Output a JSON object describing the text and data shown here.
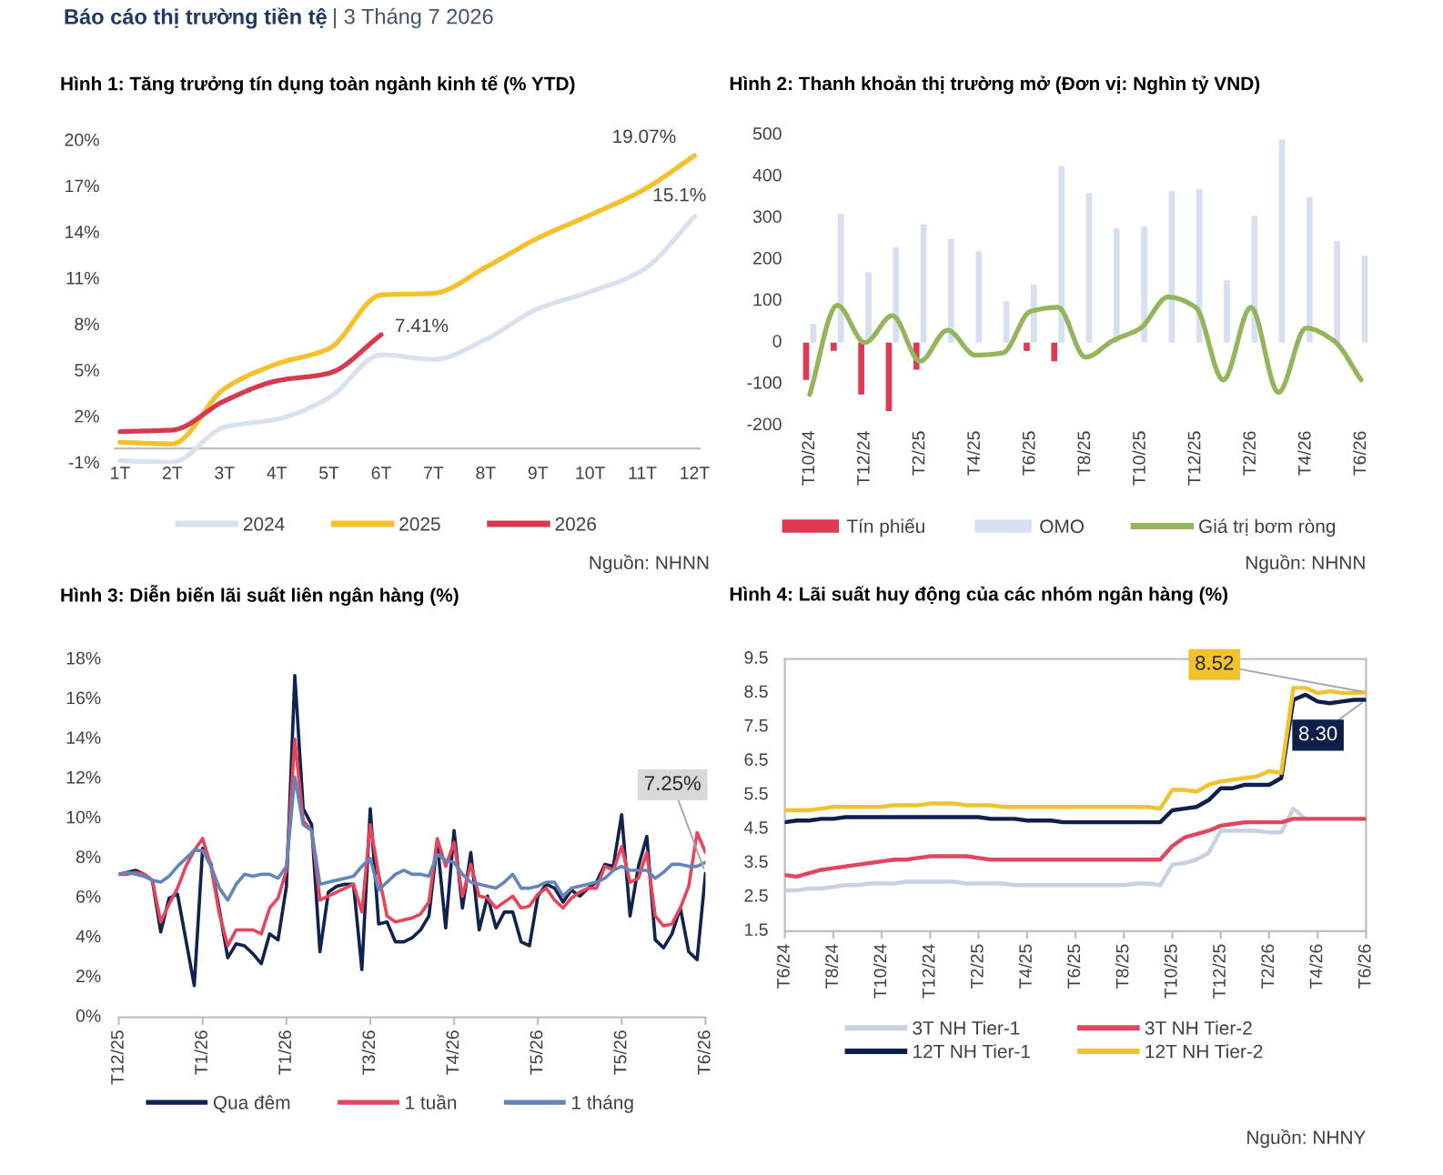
{
  "chart_data": [
    {
      "type": "other",
      "title": "Báo cáo thị trường tiền tệ",
      "subtitle": "| 3 Tháng 7 2026"
    },
    {
      "type": "line",
      "title": "Hình 1: Tăng trưởng tín dụng toàn ngành kinh tế (% YTD)",
      "categories": [
        "1T",
        "2T",
        "3T",
        "4T",
        "5T",
        "6T",
        "7T",
        "8T",
        "9T",
        "10T",
        "11T",
        "12T"
      ],
      "series": [
        {
          "name": "2024",
          "color": "#d9e1ef",
          "values": [
            -0.8,
            -0.9,
            1.4,
            1.9,
            3.3,
            6.1,
            5.8,
            7.1,
            9.1,
            10.2,
            11.6,
            15.1
          ]
        },
        {
          "name": "2025",
          "color": "#f4c02b",
          "values": [
            0.4,
            0.3,
            3.9,
            5.5,
            6.5,
            10.0,
            10.1,
            11.8,
            13.7,
            15.2,
            16.8,
            19.07
          ]
        },
        {
          "name": "2026",
          "color": "#d63a4f",
          "values": [
            1.1,
            1.2,
            3.1,
            4.4,
            4.9,
            7.41,
            null,
            null,
            null,
            null,
            null,
            null
          ]
        }
      ],
      "ylim": [
        -1,
        20
      ],
      "yticks": [
        {
          "value": -1,
          "label": "-1%"
        },
        {
          "value": 2,
          "label": "2%"
        },
        {
          "value": 5,
          "label": "5%"
        },
        {
          "value": 8,
          "label": "8%"
        },
        {
          "value": 11,
          "label": "11%"
        },
        {
          "value": 14,
          "label": "14%"
        },
        {
          "value": 17,
          "label": "17%"
        },
        {
          "value": 20,
          "label": "20%"
        }
      ],
      "legend": "bottom",
      "annotations": [
        {
          "text": "19.07%",
          "x": "12T",
          "y": 19.07
        },
        {
          "text": "15.1%",
          "x": "12T",
          "y": 15.1
        },
        {
          "text": "7.41%",
          "x": "6T",
          "y": 7.41
        },
        "Nguồn: NHNN"
      ]
    },
    {
      "type": "bar",
      "title": "Hình 2: Thanh khoản thị trường mở (Đơn vị: Nghìn tỷ VND)",
      "categories": [
        "T10/24",
        null,
        "T12/24",
        null,
        "T2/25",
        null,
        "T4/25",
        null,
        "T6/25",
        null,
        "T8/25",
        null,
        "T10/25",
        null,
        "T12/25",
        null,
        "T2/26",
        null,
        "T4/26",
        null,
        "T6/26"
      ],
      "series": [
        {
          "name": "Tín phiếu",
          "color": "#e03a52",
          "values": [
            -90,
            -20,
            -125,
            -165,
            -65,
            null,
            null,
            null,
            -20,
            -45,
            null,
            null,
            null,
            null,
            null,
            null,
            null,
            null,
            null,
            null,
            null
          ]
        },
        {
          "name": "OMO",
          "color": "#d6e0f0",
          "values": [
            45,
            310,
            170,
            230,
            285,
            250,
            220,
            100,
            140,
            425,
            360,
            275,
            280,
            365,
            370,
            150,
            305,
            490,
            350,
            245,
            210
          ]
        },
        {
          "name": "Giá trị bơm ròng",
          "type": "line",
          "color": "#94b55b",
          "values": [
            -125,
            90,
            0,
            65,
            -45,
            30,
            -30,
            -25,
            75,
            85,
            -35,
            5,
            35,
            110,
            85,
            -90,
            85,
            -120,
            35,
            5,
            -90
          ]
        }
      ],
      "ylim": [
        -200,
        500
      ],
      "yticks": [
        -200,
        -100,
        0,
        100,
        200,
        300,
        400,
        500
      ],
      "legend": "bottom",
      "annotations": [
        "Nguồn: NHNN"
      ]
    },
    {
      "type": "line",
      "title": "Hình 3: Diễn biến lãi suất liên ngân hàng (%)",
      "categories": [
        "T12/25",
        null,
        null,
        null,
        null,
        null,
        null,
        null,
        null,
        null,
        "T1/26",
        null,
        null,
        null,
        null,
        null,
        null,
        null,
        null,
        null,
        "T1/26",
        null,
        null,
        null,
        null,
        null,
        null,
        null,
        null,
        null,
        "T3/26",
        null,
        null,
        null,
        null,
        null,
        null,
        null,
        null,
        null,
        "T4/26",
        null,
        null,
        null,
        null,
        null,
        null,
        null,
        null,
        null,
        "T5/26",
        null,
        null,
        null,
        null,
        null,
        null,
        null,
        null,
        null,
        "T5/26",
        null,
        null,
        null,
        null,
        null,
        null,
        null,
        null,
        null,
        "T6/26"
      ],
      "series": [
        {
          "name": "Qua đêm",
          "color": "#0f2250",
          "values": [
            7.2,
            7.3,
            7.4,
            7.2,
            6.9,
            4.3,
            6.0,
            6.2,
            3.9,
            1.6,
            8.5,
            7.7,
            5.4,
            3.0,
            3.7,
            3.6,
            3.2,
            2.7,
            4.2,
            3.9,
            6.6,
            17.2,
            10.5,
            9.7,
            3.3,
            6.3,
            6.6,
            6.7,
            6.7,
            2.4,
            10.5,
            4.7,
            4.8,
            3.8,
            3.8,
            4.0,
            4.4,
            5.1,
            8.8,
            4.5,
            9.4,
            5.5,
            8.3,
            4.4,
            6.1,
            4.5,
            5.3,
            5.3,
            3.8,
            3.6,
            6.1,
            6.7,
            6.5,
            5.8,
            6.4,
            6.1,
            6.5,
            6.8,
            7.7,
            7.6,
            10.2,
            5.1,
            7.6,
            9.1,
            3.9,
            3.5,
            4.2,
            5.5,
            3.3,
            2.9,
            7.25
          ]
        },
        {
          "name": "1 tuần",
          "color": "#e8455d",
          "values": [
            7.2,
            7.2,
            7.3,
            7.2,
            6.9,
            4.8,
            5.7,
            6.5,
            7.6,
            8.4,
            9.0,
            7.6,
            5.2,
            3.6,
            4.4,
            4.4,
            4.4,
            4.2,
            5.5,
            6.0,
            7.4,
            14.0,
            9.9,
            9.4,
            5.9,
            6.1,
            6.3,
            6.5,
            6.7,
            5.3,
            9.7,
            7.2,
            5.1,
            4.8,
            4.9,
            5.0,
            5.2,
            5.8,
            9.0,
            7.6,
            8.8,
            6.1,
            7.7,
            6.1,
            6.0,
            5.5,
            5.8,
            6.1,
            5.5,
            5.6,
            6.2,
            6.5,
            5.9,
            5.5,
            6.0,
            6.3,
            6.5,
            6.5,
            7.6,
            7.4,
            8.6,
            6.8,
            7.0,
            8.3,
            5.1,
            4.6,
            4.7,
            5.5,
            6.6,
            9.3,
            8.3
          ]
        },
        {
          "name": "1 tháng",
          "color": "#6385b8",
          "values": [
            7.2,
            7.3,
            7.2,
            7.1,
            6.9,
            6.8,
            7.1,
            7.6,
            8.0,
            8.4,
            8.4,
            7.6,
            6.5,
            5.9,
            6.7,
            7.2,
            7.1,
            7.2,
            7.2,
            7.0,
            7.6,
            12.1,
            9.7,
            9.4,
            6.7,
            6.8,
            6.9,
            7.0,
            7.1,
            7.6,
            8.0,
            6.4,
            6.8,
            7.2,
            7.4,
            7.2,
            7.2,
            7.1,
            8.2,
            7.9,
            7.8,
            7.2,
            6.8,
            6.7,
            6.6,
            6.5,
            6.8,
            7.2,
            6.5,
            6.5,
            6.6,
            6.8,
            6.8,
            6.1,
            6.5,
            6.6,
            6.7,
            6.8,
            7.0,
            7.4,
            7.6,
            7.4,
            7.4,
            7.4,
            7.0,
            7.3,
            7.7,
            7.7,
            7.6,
            7.6,
            7.8
          ]
        }
      ],
      "ylim": [
        0,
        18
      ],
      "yticks": [
        {
          "value": 0,
          "label": "0%"
        },
        {
          "value": 2,
          "label": "2%"
        },
        {
          "value": 4,
          "label": "4%"
        },
        {
          "value": 6,
          "label": "6%"
        },
        {
          "value": 8,
          "label": "8%"
        },
        {
          "value": 10,
          "label": "10%"
        },
        {
          "value": 12,
          "label": "12%"
        },
        {
          "value": 14,
          "label": "14%"
        },
        {
          "value": 16,
          "label": "16%"
        },
        {
          "value": 18,
          "label": "18%"
        }
      ],
      "legend": "bottom",
      "annotations": [
        {
          "text": "7.25%",
          "x": "T6/26",
          "y": 7.25
        }
      ]
    },
    {
      "type": "line",
      "title": "Hình 4: Lãi suất huy động của các nhóm ngân hàng (%)",
      "categories": [
        "T6/24",
        null,
        null,
        null,
        "T8/24",
        null,
        null,
        null,
        "T10/24",
        null,
        null,
        null,
        "T12/24",
        null,
        null,
        null,
        "T2/25",
        null,
        null,
        null,
        "T4/25",
        null,
        null,
        null,
        "T6/25",
        null,
        null,
        null,
        "T8/25",
        null,
        null,
        null,
        "T10/25",
        null,
        null,
        null,
        "T12/25",
        null,
        null,
        null,
        "T2/26",
        null,
        null,
        null,
        "T4/26",
        null,
        null,
        null,
        "T6/26"
      ],
      "series": [
        {
          "name": "3T NH Tier-1",
          "color": "#c7d1e3",
          "values": [
            2.7,
            2.7,
            2.75,
            2.75,
            2.8,
            2.85,
            2.85,
            2.9,
            2.9,
            2.9,
            2.95,
            2.95,
            2.95,
            2.95,
            2.95,
            2.9,
            2.9,
            2.9,
            2.9,
            2.85,
            2.85,
            2.85,
            2.85,
            2.85,
            2.85,
            2.85,
            2.85,
            2.85,
            2.85,
            2.9,
            2.9,
            2.85,
            3.45,
            3.5,
            3.6,
            3.8,
            4.45,
            4.45,
            4.45,
            4.45,
            4.4,
            4.4,
            5.1,
            4.8,
            null,
            null,
            null,
            null,
            null
          ]
        },
        {
          "name": "3T NH Tier-2",
          "color": "#e0475e",
          "values": [
            3.15,
            3.1,
            3.2,
            3.3,
            3.35,
            3.4,
            3.45,
            3.5,
            3.55,
            3.6,
            3.6,
            3.65,
            3.7,
            3.7,
            3.7,
            3.7,
            3.65,
            3.6,
            3.6,
            3.6,
            3.6,
            3.6,
            3.6,
            3.6,
            3.6,
            3.6,
            3.6,
            3.6,
            3.6,
            3.6,
            3.6,
            3.6,
            4.0,
            4.25,
            4.35,
            4.45,
            4.6,
            4.65,
            4.7,
            4.7,
            4.7,
            4.7,
            4.8,
            4.8,
            4.8,
            4.8,
            4.8,
            4.8,
            4.8
          ]
        },
        {
          "name": "12T NH Tier-1",
          "color": "#0e1f4b",
          "values": [
            4.7,
            4.75,
            4.75,
            4.8,
            4.8,
            4.85,
            4.85,
            4.85,
            4.85,
            4.85,
            4.85,
            4.85,
            4.85,
            4.85,
            4.85,
            4.85,
            4.85,
            4.8,
            4.8,
            4.8,
            4.75,
            4.75,
            4.75,
            4.7,
            4.7,
            4.7,
            4.7,
            4.7,
            4.7,
            4.7,
            4.7,
            4.7,
            5.05,
            5.1,
            5.15,
            5.35,
            5.7,
            5.7,
            5.8,
            5.8,
            5.8,
            6.0,
            8.3,
            8.45,
            8.25,
            8.2,
            8.25,
            8.3,
            8.3
          ]
        },
        {
          "name": "12T NH Tier-2",
          "color": "#f2c12e",
          "values": [
            5.05,
            5.05,
            5.05,
            5.1,
            5.15,
            5.15,
            5.15,
            5.15,
            5.15,
            5.2,
            5.2,
            5.2,
            5.25,
            5.25,
            5.25,
            5.2,
            5.2,
            5.2,
            5.15,
            5.15,
            5.15,
            5.15,
            5.15,
            5.15,
            5.15,
            5.15,
            5.15,
            5.15,
            5.15,
            5.15,
            5.15,
            5.1,
            5.65,
            5.65,
            5.6,
            5.8,
            5.9,
            5.95,
            6.0,
            6.05,
            6.2,
            6.15,
            8.65,
            8.65,
            8.5,
            8.55,
            8.5,
            8.5,
            8.52
          ]
        }
      ],
      "ylim": [
        1.5,
        9.5
      ],
      "yticks": [
        1.5,
        2.5,
        3.5,
        4.5,
        5.5,
        6.5,
        7.5,
        8.5,
        9.5
      ],
      "legend": "bottom",
      "annotations": [
        {
          "text": "8.52",
          "x": "T6/26",
          "y": 8.52
        },
        {
          "text": "8.30",
          "x": "T6/26",
          "y": 8.3
        },
        "Nguồn: NHNY"
      ]
    }
  ]
}
